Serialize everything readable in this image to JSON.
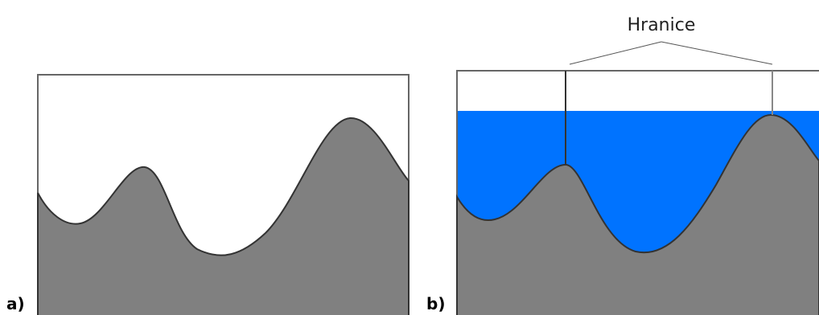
{
  "panels": [
    {
      "label": "a)"
    },
    {
      "label": "b)"
    }
  ],
  "annotation": {
    "label": "Hranice"
  }
}
